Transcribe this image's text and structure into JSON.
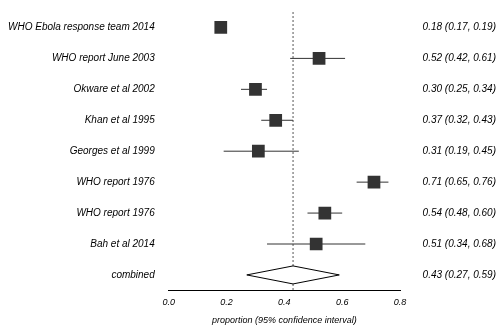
{
  "chart_data": {
    "type": "forest",
    "orientation": "horizontal",
    "grid": false,
    "data_labels": true,
    "xlabel": "proportion (95% confidence interval)",
    "categories": [
      "WHO Ebola response team 2014",
      "WHO report June 2003",
      "Okware et al 2002",
      "Khan et al 1995",
      "Georges et al 1999",
      "WHO report 1976",
      "WHO report 1976",
      "Bah et al 2014",
      "combined"
    ],
    "xlim": [
      0,
      0.8
    ],
    "xticks": [
      {
        "value": 0,
        "label": "0.0"
      },
      0.2,
      0.4,
      0.6,
      0.8
    ],
    "series": [
      {
        "marker": "square",
        "color": "#333333",
        "values": [
          0.18,
          0.52,
          0.3,
          0.37,
          0.31,
          0.71,
          0.54,
          0.51,
          null
        ],
        "lower": [
          0.17,
          0.42,
          0.25,
          0.32,
          0.19,
          0.65,
          0.48,
          0.34,
          null
        ],
        "upper": [
          0.19,
          0.61,
          0.34,
          0.43,
          0.45,
          0.76,
          0.6,
          0.68,
          null
        ],
        "value_labels": [
          "0.18 (0.17, 0.19)",
          "0.52 (0.42, 0.61)",
          "0.30 (0.25, 0.34)",
          "0.37 (0.32, 0.43)",
          "0.31 (0.19, 0.45)",
          "0.71 (0.65, 0.76)",
          "0.54 (0.48, 0.60)",
          "0.51 (0.34, 0.68)",
          null
        ]
      },
      {
        "marker": "diamond",
        "color": "#000000",
        "values": [
          null,
          null,
          null,
          null,
          null,
          null,
          null,
          null,
          0.43
        ],
        "lower": [
          null,
          null,
          null,
          null,
          null,
          null,
          null,
          null,
          0.27
        ],
        "upper": [
          null,
          null,
          null,
          null,
          null,
          null,
          null,
          null,
          0.59
        ],
        "value_labels": [
          null,
          null,
          null,
          null,
          null,
          null,
          null,
          null,
          "0.43 (0.27, 0.59)"
        ]
      }
    ]
  }
}
